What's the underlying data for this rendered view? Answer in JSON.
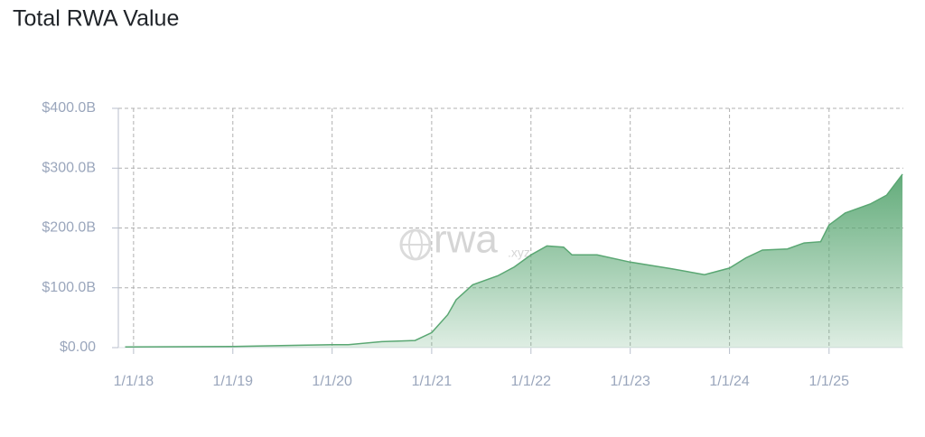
{
  "chart_data": {
    "type": "area",
    "title": "Total RWA Value",
    "watermark": {
      "text": "rwa",
      "suffix": ".xyz"
    },
    "x": [
      "2017-12-01",
      "2019-01-01",
      "2020-01-01",
      "2020-03-01",
      "2020-07-01",
      "2020-11-01",
      "2021-01-01",
      "2021-03-01",
      "2021-04-01",
      "2021-06-01",
      "2021-09-01",
      "2021-11-01",
      "2022-01-01",
      "2022-03-01",
      "2022-05-01",
      "2022-06-01",
      "2022-09-01",
      "2023-01-01",
      "2023-06-01",
      "2023-10-01",
      "2024-01-01",
      "2024-03-01",
      "2024-05-01",
      "2024-08-01",
      "2024-10-01",
      "2024-12-01",
      "2025-01-01",
      "2025-03-01",
      "2025-06-01",
      "2025-08-01",
      "2025-09-28"
    ],
    "values": [
      1,
      2,
      5,
      5,
      10,
      12,
      25,
      55,
      80,
      105,
      120,
      135,
      155,
      170,
      168,
      155,
      155,
      143,
      132,
      122,
      133,
      150,
      163,
      165,
      175,
      177,
      205,
      225,
      240,
      255,
      290
    ],
    "color": "#5aa773",
    "xlim": [
      "2017-11-06",
      "2025-10-01"
    ],
    "xticks": [
      {
        "value": "2018-01-01",
        "label": "1/1/18"
      },
      {
        "value": "2019-01-01",
        "label": "1/1/19"
      },
      {
        "value": "2020-01-01",
        "label": "1/1/20"
      },
      {
        "value": "2021-01-01",
        "label": "1/1/21"
      },
      {
        "value": "2022-01-01",
        "label": "1/1/22"
      },
      {
        "value": "2023-01-01",
        "label": "1/1/23"
      },
      {
        "value": "2024-01-01",
        "label": "1/1/24"
      },
      {
        "value": "2025-01-01",
        "label": "1/1/25"
      }
    ],
    "ylim": [
      0,
      400
    ],
    "yticks": [
      {
        "value": 0,
        "label": "$0.00"
      },
      {
        "value": 100,
        "label": "$100.0B"
      },
      {
        "value": 200,
        "label": "$200.0B"
      },
      {
        "value": 300,
        "label": "$300.0B"
      },
      {
        "value": 400,
        "label": "$400.0B"
      }
    ],
    "grid": true
  }
}
